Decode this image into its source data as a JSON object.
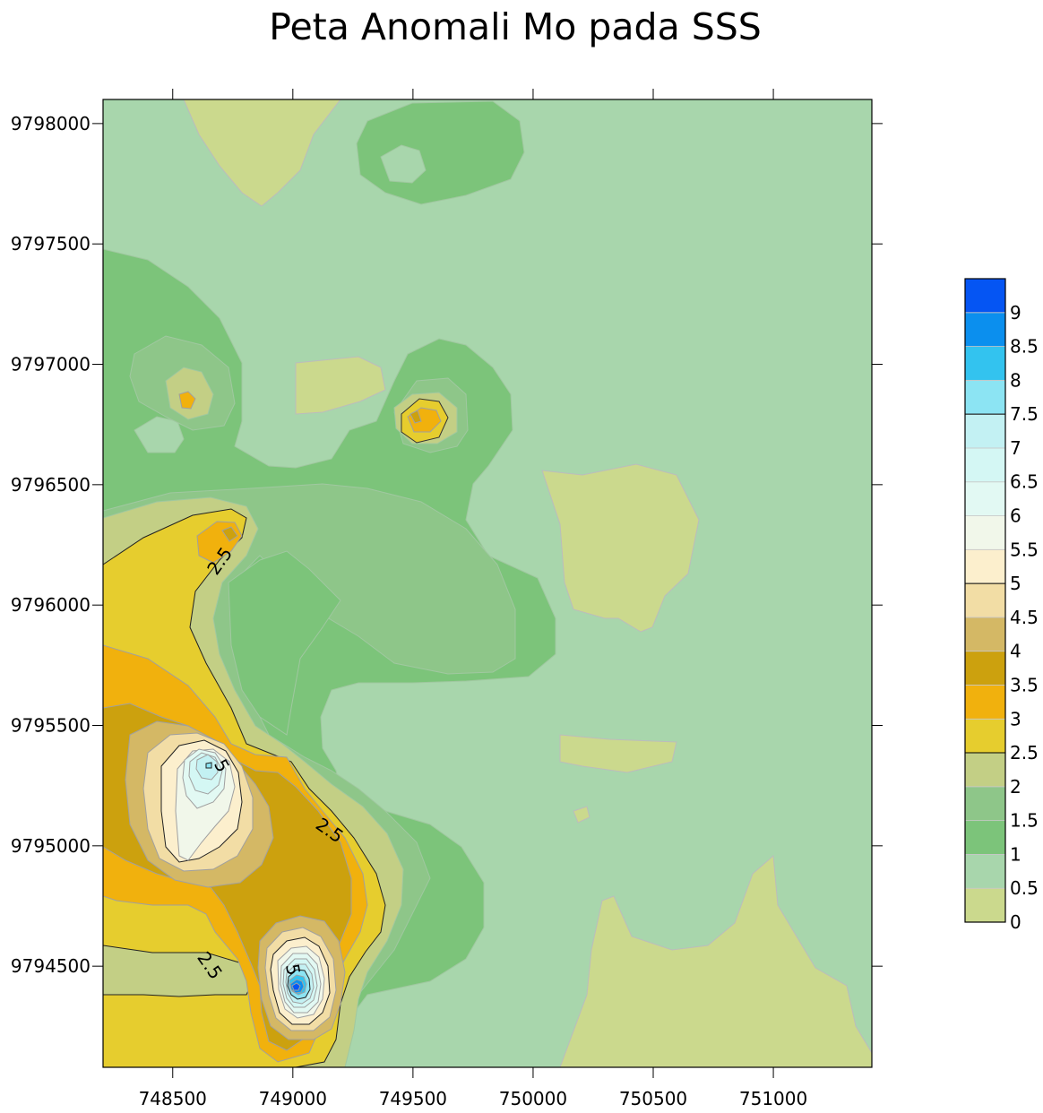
{
  "chart_data": {
    "type": "heatmap",
    "subtype": "filled-contour-map",
    "title": "Peta Anomali Mo pada SSS",
    "xlabel": "",
    "ylabel": "",
    "xlim": [
      748210,
      751410
    ],
    "ylim": [
      9794080,
      9798100
    ],
    "x_ticks": [
      748500,
      749000,
      749500,
      750000,
      750500,
      751000
    ],
    "y_ticks": [
      9794500,
      9795000,
      9795500,
      9796000,
      9796500,
      9797000,
      9797500,
      9798000
    ],
    "legend_position": "right",
    "legend_levels": [
      {
        "value": 0,
        "label": "0",
        "color": "#cbd98d"
      },
      {
        "value": 0.5,
        "label": "0.5",
        "color": "#a8d6ac"
      },
      {
        "value": 1,
        "label": "1",
        "color": "#7cc47a"
      },
      {
        "value": 1.5,
        "label": "1.5",
        "color": "#8ec689"
      },
      {
        "value": 2,
        "label": "2",
        "color": "#c3cf85"
      },
      {
        "value": 2.5,
        "label": "2.5",
        "color": "#e6cd2e"
      },
      {
        "value": 3,
        "label": "3",
        "color": "#f1b10d"
      },
      {
        "value": 3.5,
        "label": "3.5",
        "color": "#cca10e"
      },
      {
        "value": 4,
        "label": "4",
        "color": "#d4b865"
      },
      {
        "value": 4.5,
        "label": "4.5",
        "color": "#f2dda5"
      },
      {
        "value": 5,
        "label": "5",
        "color": "#fcefcd"
      },
      {
        "value": 5.5,
        "label": "5.5",
        "color": "#f1f7ea"
      },
      {
        "value": 6,
        "label": "6",
        "color": "#e2f9f3"
      },
      {
        "value": 6.5,
        "label": "6.5",
        "color": "#d4f7f4"
      },
      {
        "value": 7,
        "label": "7",
        "color": "#c3f1f3"
      },
      {
        "value": 7.5,
        "label": "7.5",
        "color": "#8ce4f3"
      },
      {
        "value": 8,
        "label": "8",
        "color": "#33c3ef"
      },
      {
        "value": 8.5,
        "label": "8.5",
        "color": "#0b8fee"
      },
      {
        "value": 9,
        "label": "9",
        "color": "#0555f3"
      }
    ],
    "contour_labels": [
      "2.5",
      "2.5",
      "2.5",
      "5",
      "5"
    ],
    "anomaly_peaks": [
      {
        "x": 749010,
        "y": 9794390,
        "value": 9
      },
      {
        "x": 748645,
        "y": 9795330,
        "value": 7
      },
      {
        "x": 749505,
        "y": 9796780,
        "value": 3.5
      },
      {
        "x": 748580,
        "y": 9796840,
        "value": 3
      },
      {
        "x": 748745,
        "y": 9796290,
        "value": 3.5
      }
    ]
  }
}
